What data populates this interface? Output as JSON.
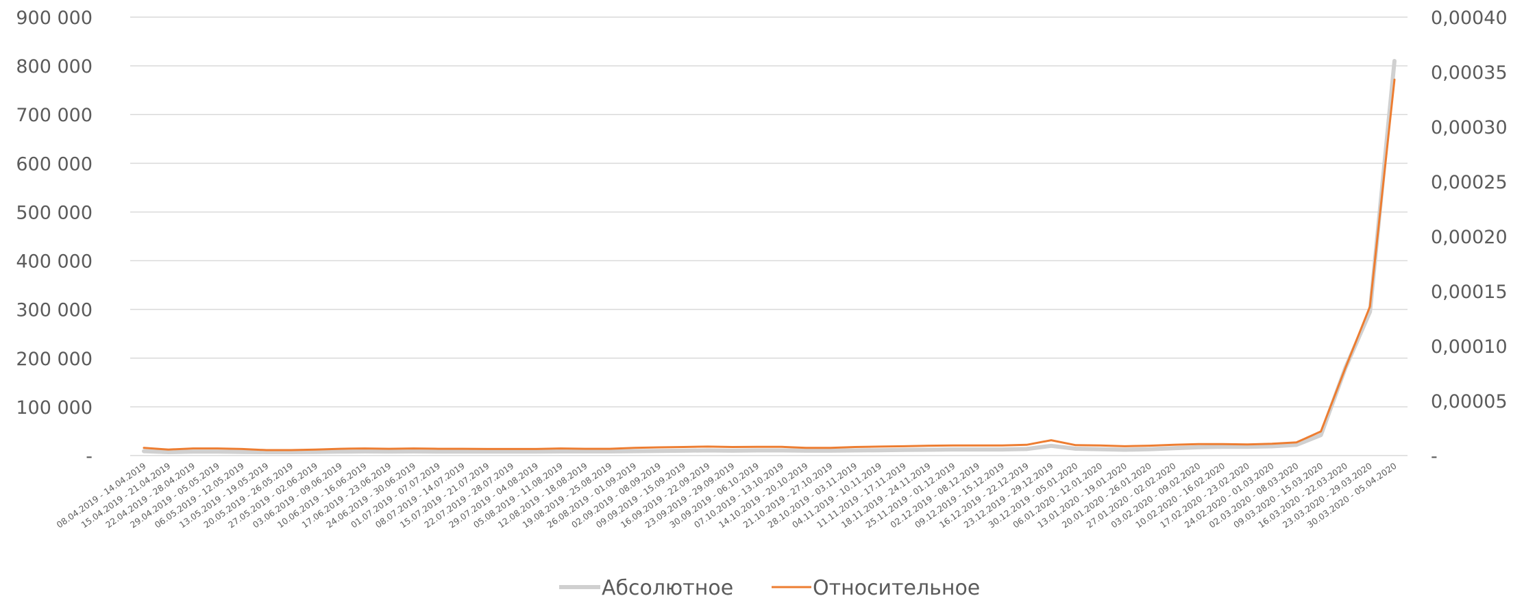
{
  "chart_data": {
    "type": "line",
    "title": "",
    "x": [
      "08.04.2019 - 14.04.2019",
      "15.04.2019 - 21.04.2019",
      "22.04.2019 - 28.04.2019",
      "29.04.2019 - 05.05.2019",
      "06.05.2019 - 12.05.2019",
      "13.05.2019 - 19.05.2019",
      "20.05.2019 - 26.05.2019",
      "27.05.2019 - 02.06.2019",
      "03.06.2019 - 09.06.2019",
      "10.06.2019 - 16.06.2019",
      "17.06.2019 - 23.06.2019",
      "24.06.2019 - 30.06.2019",
      "01.07.2019 - 07.07.2019",
      "08.07.2019 - 14.07.2019",
      "15.07.2019 - 21.07.2019",
      "22.07.2019 - 28.07.2019",
      "29.07.2019 - 04.08.2019",
      "05.08.2019 - 11.08.2019",
      "12.08.2019 - 18.08.2019",
      "19.08.2019 - 25.08.2019",
      "26.08.2019 - 01.09.2019",
      "02.09.2019 - 08.09.2019",
      "09.09.2019 - 15.09.2019",
      "16.09.2019 - 22.09.2019",
      "23.09.2019 - 29.09.2019",
      "30.09.2019 - 06.10.2019",
      "07.10.2019 - 13.10.2019",
      "14.10.2019 - 20.10.2019",
      "21.10.2019 - 27.10.2019",
      "28.10.2019 - 03.11.2019",
      "04.11.2019 - 10.11.2019",
      "11.11.2019 - 17.11.2019",
      "18.11.2019 - 24.11.2019",
      "25.11.2019 - 01.12.2019",
      "02.12.2019 - 08.12.2019",
      "09.12.2019 - 15.12.2019",
      "16.12.2019 - 22.12.2019",
      "23.12.2019 - 29.12.2019",
      "30.12.2019 - 05.01.2020",
      "06.01.2020 - 12.01.2020",
      "13.01.2020 - 19.01.2020",
      "20.01.2020 - 26.01.2020",
      "27.01.2020 - 02.02.2020",
      "03.02.2020 - 09.02.2020",
      "10.02.2020 - 16.02.2020",
      "17.02.2020 - 23.02.2020",
      "24.02.2020 - 01.03.2020",
      "02.03.2020 - 08.03.2020",
      "09.03.2020 - 15.03.2020",
      "16.03.2020 - 22.03.2020",
      "23.03.2020 - 29.03.2020",
      "30.03.2020 - 05.04.2020"
    ],
    "y_left": {
      "ticks": [
        0,
        100000,
        200000,
        300000,
        400000,
        500000,
        600000,
        700000,
        800000,
        900000
      ],
      "tick_labels": [
        "-",
        "100 000",
        "200 000",
        "300 000",
        "400 000",
        "500 000",
        "600 000",
        "700 000",
        "800 000",
        "900 000"
      ],
      "ylim": [
        0,
        900000
      ]
    },
    "y_right": {
      "ticks": [
        0,
        5e-05,
        0.0001,
        0.00015,
        0.0002,
        0.00025,
        0.0003,
        0.00035,
        0.0004
      ],
      "tick_labels": [
        "-",
        "0,00005",
        "0,00010",
        "0,00015",
        "0,00020",
        "0,00025",
        "0,00030",
        "0,00035",
        "0,00040"
      ],
      "ylim": [
        0,
        0.0004
      ]
    },
    "series": [
      {
        "name": "Абсолютное",
        "axis": "left",
        "color": "#d0d0d0",
        "values": [
          9000,
          7000,
          8000,
          8000,
          7500,
          7000,
          7000,
          7500,
          8000,
          8500,
          8000,
          8500,
          8000,
          8000,
          8000,
          8000,
          8000,
          8500,
          8500,
          8500,
          9000,
          9500,
          10000,
          10500,
          10000,
          10500,
          10500,
          10000,
          10000,
          10500,
          11000,
          11500,
          12000,
          12500,
          12500,
          12500,
          13500,
          20000,
          14000,
          13000,
          12000,
          13000,
          15000,
          17000,
          18000,
          18000,
          19000,
          22000,
          42000,
          180000,
          295000,
          810000
        ]
      },
      {
        "name": "Относительное",
        "axis": "right",
        "color": "#ed7d31",
        "values": [
          7e-06,
          5.5e-06,
          6.5e-06,
          6.5e-06,
          6e-06,
          5e-06,
          5e-06,
          5.5e-06,
          6.2e-06,
          6.5e-06,
          6.2e-06,
          6.5e-06,
          6.2e-06,
          6.2e-06,
          6e-06,
          6e-06,
          6e-06,
          6.5e-06,
          6.2e-06,
          6.2e-06,
          7e-06,
          7.5e-06,
          7.8e-06,
          8.2e-06,
          7.8e-06,
          8e-06,
          8e-06,
          7e-06,
          7e-06,
          7.8e-06,
          8.2e-06,
          8.5e-06,
          9e-06,
          9.2e-06,
          9.2e-06,
          9.2e-06,
          9.8e-06,
          1.4e-05,
          9.5e-06,
          9.2e-06,
          8.5e-06,
          9e-06,
          9.8e-06,
          1.05e-05,
          1.05e-05,
          1.02e-05,
          1.08e-05,
          1.2e-05,
          2.2e-05,
          8e-05,
          0.000136,
          0.000343
        ]
      }
    ],
    "legend": {
      "position": "bottom"
    },
    "grid": true
  }
}
